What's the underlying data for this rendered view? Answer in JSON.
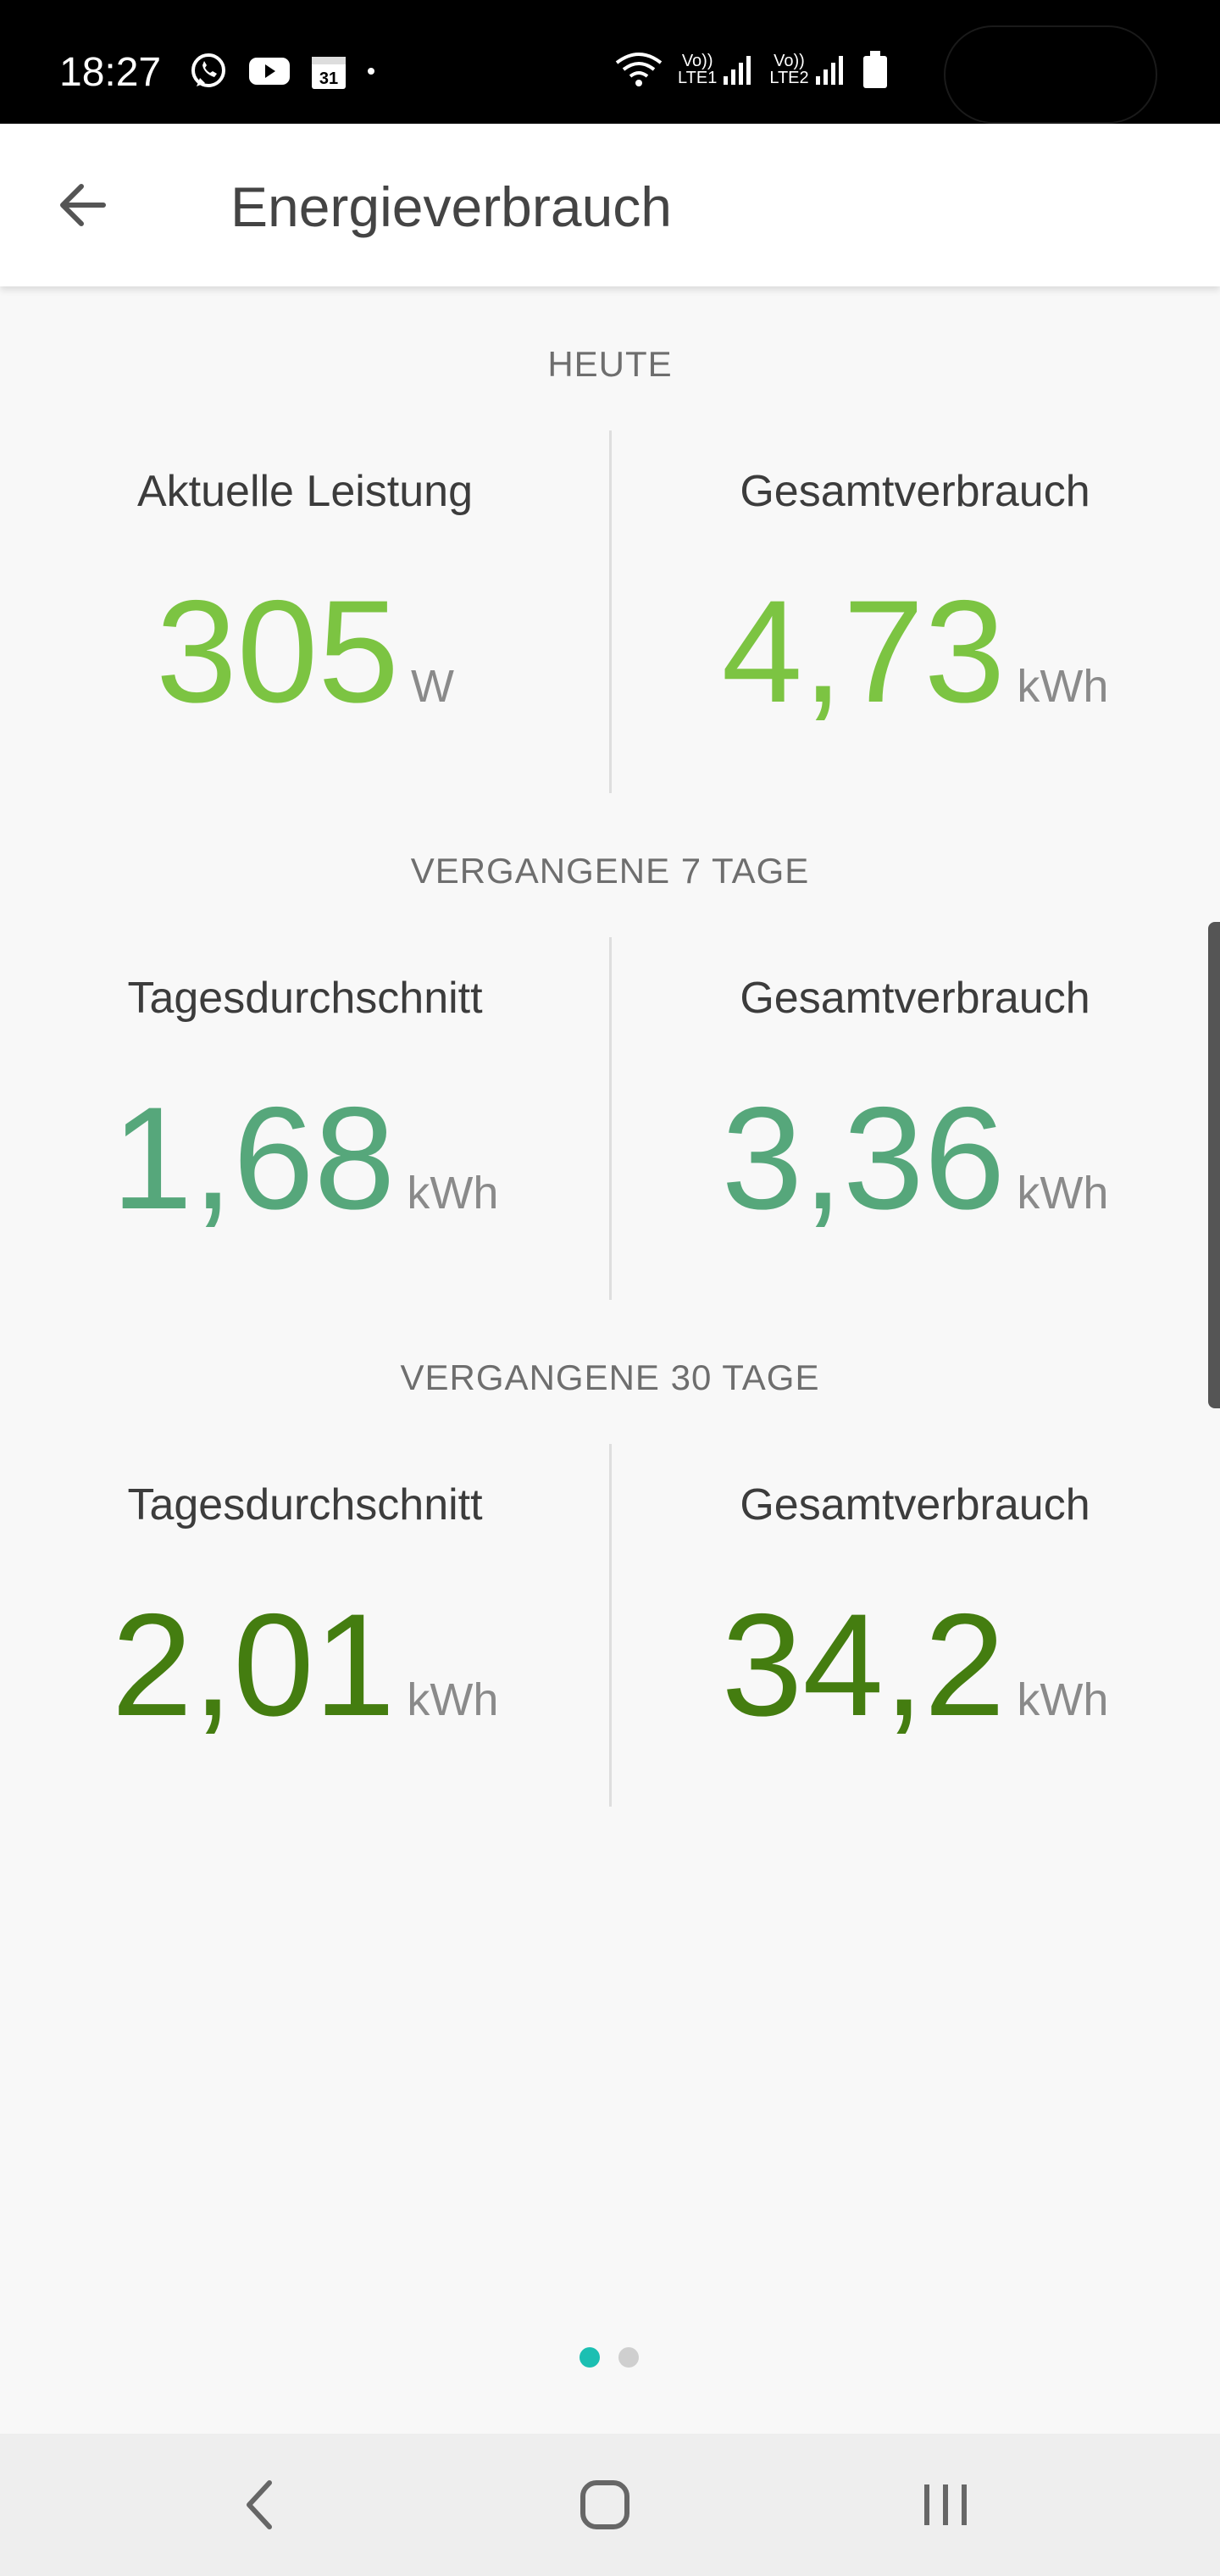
{
  "status_bar": {
    "time": "18:27",
    "left_icons": [
      "whatsapp-icon",
      "youtube-icon",
      "calendar-icon",
      "notification-dot"
    ],
    "calendar_day": "31",
    "right_icons": [
      "wifi-icon",
      "signal-lte1-icon",
      "signal-lte2-icon",
      "battery-icon"
    ],
    "lte1_label": "LTE1",
    "lte2_label": "LTE2",
    "volte_label": "Vo))"
  },
  "app_bar": {
    "title": "Energieverbrauch",
    "back_icon": "arrow-left-icon"
  },
  "sections": [
    {
      "label": "HEUTE",
      "left": {
        "title": "Aktuelle Leistung",
        "value": "305",
        "unit": "W",
        "color": "#7cc442"
      },
      "right": {
        "title": "Gesamtverbrauch",
        "value": "4,73",
        "unit": "kWh",
        "color": "#7cc442"
      }
    },
    {
      "label": "VERGANGENE 7 TAGE",
      "left": {
        "title": "Tagesdurchschnitt",
        "value": "1,68",
        "unit": "kWh",
        "color": "#56a77b"
      },
      "right": {
        "title": "Gesamtverbrauch",
        "value": "3,36",
        "unit": "kWh",
        "color": "#56a77b"
      }
    },
    {
      "label": "VERGANGENE 30 TAGE",
      "left": {
        "title": "Tagesdurchschnitt",
        "value": "2,01",
        "unit": "kWh",
        "color": "#447d10"
      },
      "right": {
        "title": "Gesamtverbrauch",
        "value": "34,2",
        "unit": "kWh",
        "color": "#447d10"
      }
    }
  ],
  "pager": {
    "pages": 2,
    "active_page": 1,
    "active_color": "#1cbfb2"
  },
  "nav_bar": {
    "buttons": [
      "back-icon",
      "home-icon",
      "recent-apps-icon"
    ]
  }
}
